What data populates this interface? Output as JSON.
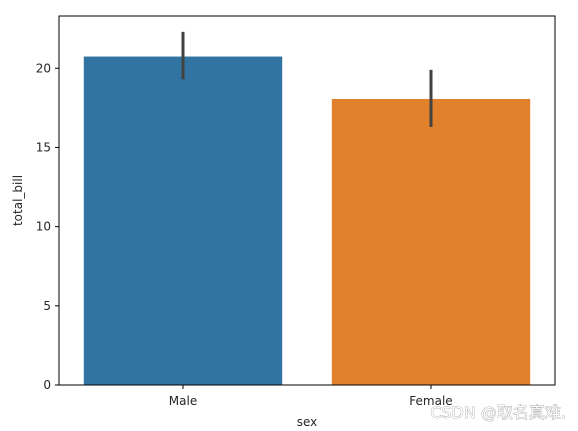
{
  "chart_data": {
    "type": "bar",
    "categories": [
      "Male",
      "Female"
    ],
    "values": [
      20.74,
      18.06
    ],
    "error_bars": [
      {
        "low": 19.3,
        "high": 22.3
      },
      {
        "low": 16.3,
        "high": 19.9
      }
    ],
    "colors": [
      "#3274a1",
      "#e1812c"
    ],
    "error_color": "#424242",
    "xlabel": "sex",
    "ylabel": "total_bill",
    "ylim": [
      0,
      23.3
    ],
    "yticks": [
      0,
      5,
      10,
      15,
      20
    ],
    "grid": false,
    "legend": "none"
  },
  "watermark": "CSDN @取名真难."
}
